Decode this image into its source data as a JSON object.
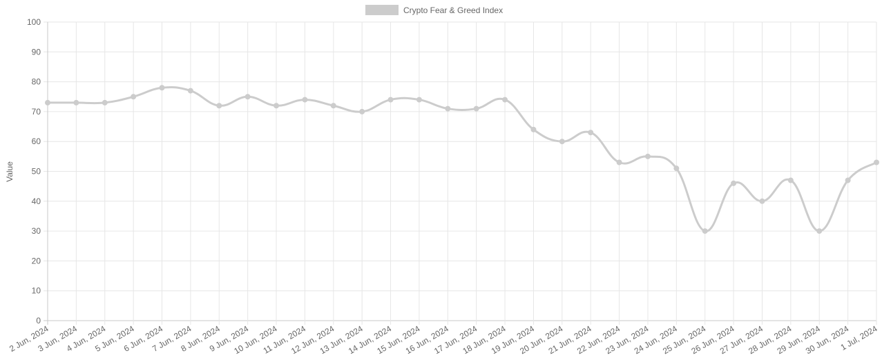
{
  "chart_data": {
    "type": "line",
    "legend": {
      "position": "top",
      "label": "Crypto Fear & Greed Index",
      "swatch_color": "#cccccc"
    },
    "ylabel": "Value",
    "ylim": [
      0,
      100
    ],
    "y_ticks": [
      0,
      10,
      20,
      30,
      40,
      50,
      60,
      70,
      80,
      90,
      100
    ],
    "grid": true,
    "line_color": "#cccccc",
    "categories": [
      "2 Jun, 2024",
      "3 Jun, 2024",
      "4 Jun, 2024",
      "5 Jun, 2024",
      "6 Jun, 2024",
      "7 Jun, 2024",
      "8 Jun, 2024",
      "9 Jun, 2024",
      "10 Jun, 2024",
      "11 Jun, 2024",
      "12 Jun, 2024",
      "13 Jun, 2024",
      "14 Jun, 2024",
      "15 Jun, 2024",
      "16 Jun, 2024",
      "17 Jun, 2024",
      "18 Jun, 2024",
      "19 Jun, 2024",
      "20 Jun, 2024",
      "21 Jun, 2024",
      "22 Jun, 2024",
      "23 Jun, 2024",
      "24 Jun, 2024",
      "25 Jun, 2024",
      "26 Jun, 2024",
      "27 Jun, 2024",
      "28 Jun, 2024",
      "29 Jun, 2024",
      "30 Jun, 2024",
      "1 Jul, 2024"
    ],
    "series": [
      {
        "name": "Crypto Fear & Greed Index",
        "values": [
          73,
          73,
          73,
          75,
          78,
          77,
          72,
          75,
          72,
          74,
          72,
          70,
          74,
          74,
          71,
          71,
          74,
          64,
          60,
          63,
          53,
          55,
          51,
          30,
          46,
          40,
          47,
          30,
          47,
          53
        ]
      }
    ]
  }
}
